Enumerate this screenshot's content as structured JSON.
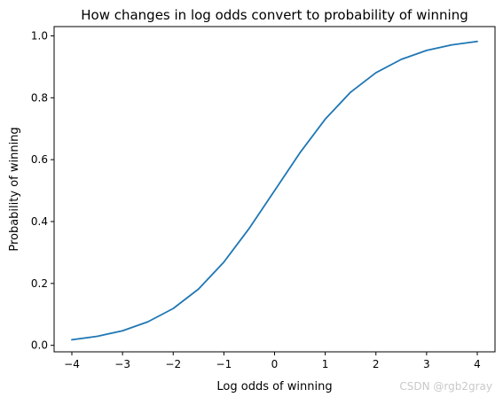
{
  "chart_data": {
    "type": "line",
    "title": "How changes in log odds convert to probability of winning",
    "xlabel": "Log odds of winning",
    "ylabel": "Probability of winning",
    "xlim": [
      -4.35,
      4.35
    ],
    "ylim": [
      -0.021,
      1.03
    ],
    "xticks": [
      -4,
      -3,
      -2,
      -1,
      0,
      1,
      2,
      3,
      4
    ],
    "xtick_labels": [
      "−4",
      "−3",
      "−2",
      "−1",
      "0",
      "1",
      "2",
      "3",
      "4"
    ],
    "yticks": [
      0.0,
      0.2,
      0.4,
      0.6,
      0.8,
      1.0
    ],
    "ytick_labels": [
      "0.0",
      "0.2",
      "0.4",
      "0.6",
      "0.8",
      "1.0"
    ],
    "grid": false,
    "series": [
      {
        "color": "#1f77b4",
        "x": [
          -4.0,
          -3.5,
          -3.0,
          -2.5,
          -2.0,
          -1.5,
          -1.0,
          -0.5,
          0.0,
          0.5,
          1.0,
          1.5,
          2.0,
          2.5,
          3.0,
          3.5,
          4.0
        ],
        "y": [
          0.018,
          0.029,
          0.047,
          0.076,
          0.119,
          0.182,
          0.269,
          0.378,
          0.5,
          0.622,
          0.731,
          0.818,
          0.881,
          0.924,
          0.953,
          0.971,
          0.982
        ]
      }
    ]
  },
  "watermark": "CSDN @rgb2gray"
}
